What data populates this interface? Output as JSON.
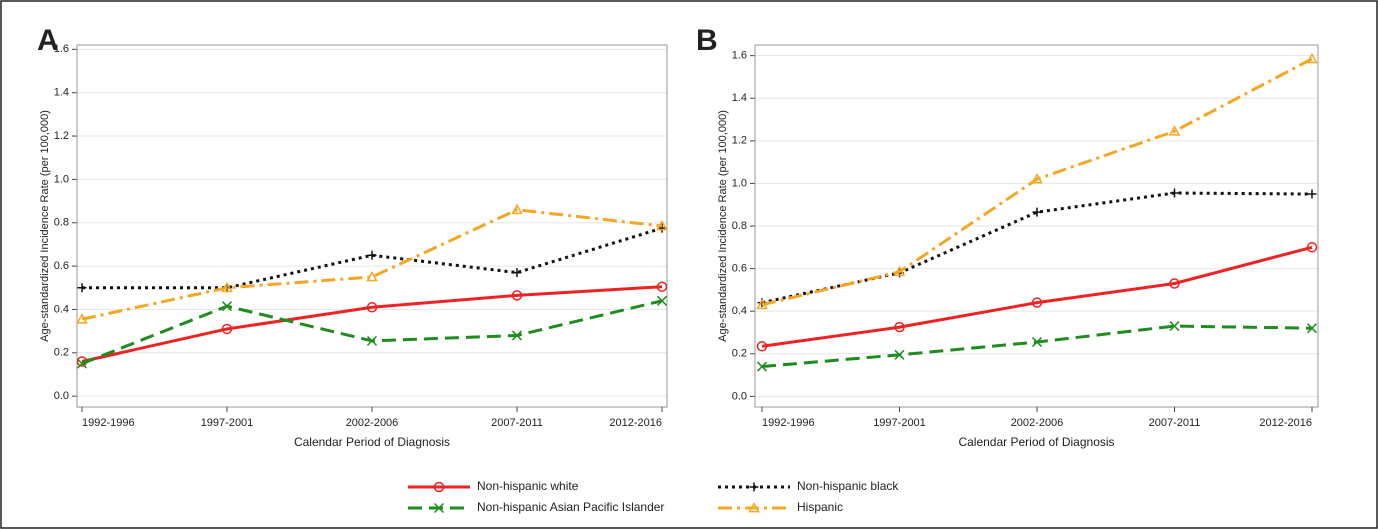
{
  "chart_data": [
    {
      "type": "line",
      "panel_label": "A",
      "y_label": "Age-standardized Incidence Rate (per 100,000)",
      "x_label": "Calendar Period of Diagnosis",
      "categories": [
        "1992-1996",
        "1997-2001",
        "2002-2006",
        "2007-2011",
        "2012-2016"
      ],
      "ylim": [
        -0.05,
        1.62
      ],
      "yticks": [
        {
          "value": 0,
          "label": "0.0"
        },
        {
          "value": 0.2,
          "label": "0.2"
        },
        {
          "value": 0.4,
          "label": "0.4"
        },
        {
          "value": 0.6,
          "label": "0.6"
        },
        {
          "value": 0.8,
          "label": "0.8"
        },
        {
          "value": 1,
          "label": "1.0"
        },
        {
          "value": 1.2,
          "label": "1.2"
        },
        {
          "value": 1.4,
          "label": "1.4"
        },
        {
          "value": 1.6,
          "label": "1.6"
        }
      ],
      "grid": true,
      "series": [
        {
          "name": "Non-hispanic white",
          "color": "#ee2222",
          "marker": "circle",
          "dash": "solid",
          "values": [
            0.16,
            0.31,
            0.41,
            0.465,
            0.505
          ]
        },
        {
          "name": "Non-hispanic black",
          "color": "#111111",
          "marker": "plus",
          "dash": "dotted",
          "values": [
            0.5,
            0.5,
            0.65,
            0.57,
            0.775
          ]
        },
        {
          "name": "Non-hispanic Asian Pacific Islander",
          "color": "#1e8c1e",
          "marker": "x",
          "dash": "dashed",
          "values": [
            0.15,
            0.415,
            0.255,
            0.28,
            0.44
          ]
        },
        {
          "name": "Hispanic",
          "color": "#f5a623",
          "marker": "triangle",
          "dash": "dashdot",
          "values": [
            0.355,
            0.5,
            0.55,
            0.86,
            0.785
          ]
        }
      ]
    },
    {
      "type": "line",
      "panel_label": "B",
      "y_label": "Age-standardized Incidence Rate (per 100,000)",
      "x_label": "Calendar Period of Diagnosis",
      "categories": [
        "1992-1996",
        "1997-2001",
        "2002-2006",
        "2007-2011",
        "2012-2016"
      ],
      "ylim": [
        -0.05,
        1.65
      ],
      "yticks": [
        {
          "value": 0,
          "label": "0.0"
        },
        {
          "value": 0.2,
          "label": "0.2"
        },
        {
          "value": 0.4,
          "label": "0.4"
        },
        {
          "value": 0.6,
          "label": "0.6"
        },
        {
          "value": 0.8,
          "label": "0.8"
        },
        {
          "value": 1,
          "label": "1.0"
        },
        {
          "value": 1.2,
          "label": "1.2"
        },
        {
          "value": 1.4,
          "label": "1.4"
        },
        {
          "value": 1.6,
          "label": "1.6"
        }
      ],
      "grid": true,
      "series": [
        {
          "name": "Non-hispanic white",
          "color": "#ee2222",
          "marker": "circle",
          "dash": "solid",
          "values": [
            0.235,
            0.325,
            0.44,
            0.53,
            0.7
          ]
        },
        {
          "name": "Non-hispanic black",
          "color": "#111111",
          "marker": "plus",
          "dash": "dotted",
          "values": [
            0.44,
            0.58,
            0.865,
            0.955,
            0.95
          ]
        },
        {
          "name": "Non-hispanic Asian Pacific Islander",
          "color": "#1e8c1e",
          "marker": "x",
          "dash": "dashed",
          "values": [
            0.14,
            0.195,
            0.255,
            0.33,
            0.32
          ]
        },
        {
          "name": "Hispanic",
          "color": "#f5a623",
          "marker": "triangle",
          "dash": "dashdot",
          "values": [
            0.43,
            0.585,
            1.02,
            1.245,
            1.585
          ]
        }
      ]
    }
  ]
}
